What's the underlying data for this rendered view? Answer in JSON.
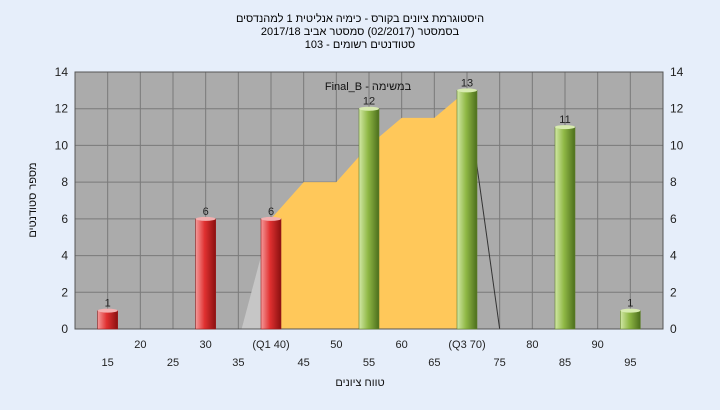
{
  "chart_data": {
    "type": "bar",
    "title_lines": [
      "היסטוגרמת ציונים בקורס - כימיה אנליטית 1 למהנדסים",
      "בסמסטר  (02/2017)  סמסטר אביב 2017/18",
      "סטודנטים רשומים - 103"
    ],
    "plot_label": "Final_B - במשימה",
    "xlabel": "טווח ציונים",
    "ylabel": "מספר סטודנטים",
    "ylim": [
      0,
      14
    ],
    "yticks": [
      0,
      2,
      4,
      6,
      8,
      10,
      12,
      14
    ],
    "x_tick_labels_row1": [
      "20",
      "25",
      "30",
      "(Q1 40)",
      "45",
      "50",
      "55",
      "60",
      "65",
      "(Q3 70)",
      "75",
      "80",
      "85",
      "90",
      "95"
    ],
    "x_tick_labels_row2": [
      "15",
      "35"
    ],
    "bars": [
      {
        "x": 15,
        "value": 1,
        "color": "red"
      },
      {
        "x": 30,
        "value": 6,
        "color": "red"
      },
      {
        "x": 40,
        "value": 6,
        "color": "red"
      },
      {
        "x": 55,
        "value": 12,
        "color": "green"
      },
      {
        "x": 70,
        "value": 13,
        "color": "green"
      },
      {
        "x": 85,
        "value": 11,
        "color": "green"
      },
      {
        "x": 95,
        "value": 1,
        "color": "green"
      }
    ],
    "area": {
      "x": [
        40,
        45,
        50,
        55,
        60,
        65,
        70
      ],
      "y": [
        6,
        8,
        8,
        10,
        11.5,
        11.5,
        13
      ]
    },
    "grid": true,
    "colors": {
      "background": "#e6eefa",
      "plot_bg": "#ababab",
      "grid": "#7a7a7a",
      "red_bar": "#e03030",
      "green_bar": "#8fb845",
      "area": "#ffc85a"
    }
  }
}
